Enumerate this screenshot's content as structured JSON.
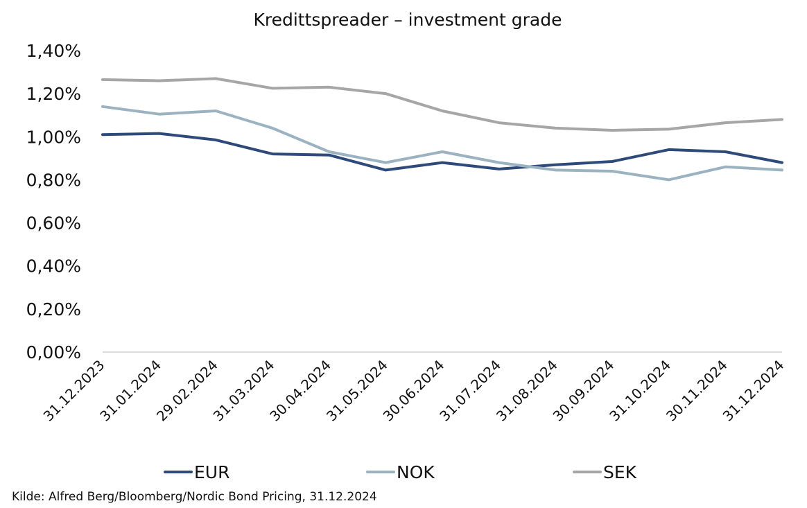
{
  "chart_data": {
    "type": "line",
    "title": "Kredittspreader – investment grade",
    "xlabel": "",
    "ylabel": "",
    "categories": [
      "31.12.2023",
      "31.01.2024",
      "29.02.2024",
      "31.03.2024",
      "30.04.2024",
      "31.05.2024",
      "30.06.2024",
      "31.07.2024",
      "31.08.2024",
      "30.09.2024",
      "31.10.2024",
      "30.11.2024",
      "31.12.2024"
    ],
    "ylim": [
      0,
      1.4
    ],
    "yticks": [
      0,
      0.2,
      0.4,
      0.6,
      0.8,
      1.0,
      1.2,
      1.4
    ],
    "ytick_labels": [
      "0,00%",
      "0,20%",
      "0,40%",
      "0,60%",
      "0,80%",
      "1,00%",
      "1,20%",
      "1,40%"
    ],
    "grid": false,
    "legend_position": "bottom",
    "series": [
      {
        "name": "EUR",
        "color": "#2e4a7a",
        "values": [
          1.01,
          1.015,
          0.985,
          0.92,
          0.915,
          0.845,
          0.88,
          0.85,
          0.87,
          0.885,
          0.94,
          0.93,
          0.88
        ]
      },
      {
        "name": "NOK",
        "color": "#9bb3c1",
        "values": [
          1.14,
          1.105,
          1.12,
          1.04,
          0.93,
          0.88,
          0.93,
          0.88,
          0.845,
          0.84,
          0.8,
          0.86,
          0.845
        ]
      },
      {
        "name": "SEK",
        "color": "#a6a6a6",
        "values": [
          1.265,
          1.26,
          1.27,
          1.225,
          1.23,
          1.2,
          1.12,
          1.065,
          1.04,
          1.03,
          1.035,
          1.065,
          1.08
        ]
      }
    ]
  },
  "source": "Kilde: Alfred Berg/Bloomberg/Nordic Bond Pricing, 31.12.2024"
}
